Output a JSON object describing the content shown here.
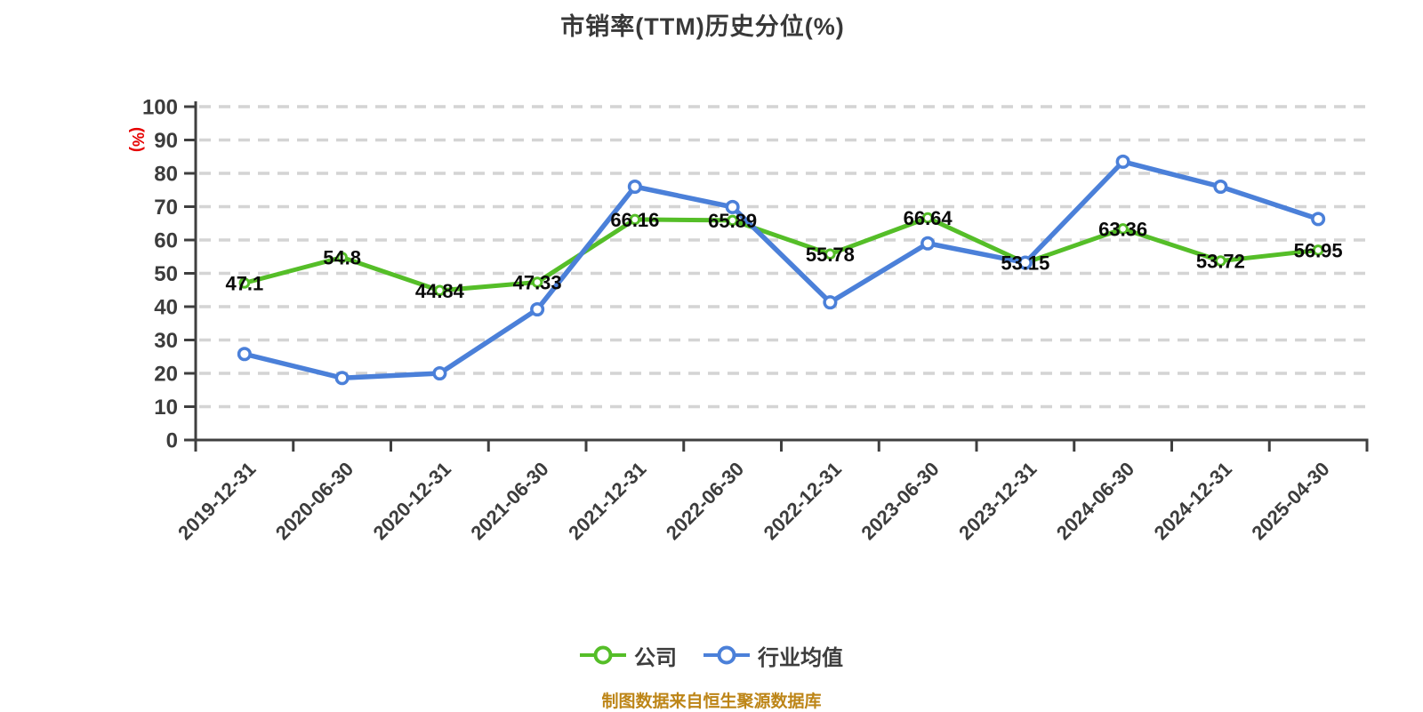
{
  "title": "市销率(TTM)历史分位(%)",
  "footer_note": "制图数据来自恒生聚源数据库",
  "chart_data": {
    "type": "line",
    "title": "市销率(TTM)历史分位(%)",
    "ylabel": "(%)",
    "xlabel": "",
    "ylim": [
      0,
      100
    ],
    "y_tick_step": 10,
    "grid": "horizontal-dashed",
    "legend_position": "bottom-center",
    "categories": [
      "2019-12-31",
      "2020-06-30",
      "2020-12-31",
      "2021-06-30",
      "2021-12-31",
      "2022-06-30",
      "2022-12-31",
      "2023-06-30",
      "2023-12-31",
      "2024-06-30",
      "2024-12-31",
      "2025-04-30"
    ],
    "series": [
      {
        "id": "company",
        "name": "公司",
        "color": "#55be28",
        "marker": "circle-white-filled",
        "show_value_labels": true,
        "values": [
          47.1,
          54.8,
          44.84,
          47.33,
          66.16,
          65.89,
          55.78,
          66.64,
          53.15,
          63.36,
          53.72,
          56.95
        ]
      },
      {
        "id": "industry-average",
        "name": "行业均值",
        "color": "#4b80d9",
        "marker": "circle-white-filled",
        "show_value_labels": false,
        "values": [
          25.8,
          18.6,
          20,
          39.2,
          76,
          69.9,
          41.3,
          59,
          53.2,
          83.5,
          76,
          66.3
        ]
      }
    ],
    "source_note": "制图数据来自恒生聚源数据库"
  },
  "style": {
    "background": "#ffffff",
    "title_color": "#383838",
    "axis_color": "#3f3f3f",
    "axis_label_color": "#3c3c3c",
    "grid_color": "#d4d4d4",
    "value_label_color": "#0a0a0a",
    "ylabel_color": "#e60000",
    "legend_text_color": "#3d3d3d",
    "source_note_color": "#bd8517"
  }
}
